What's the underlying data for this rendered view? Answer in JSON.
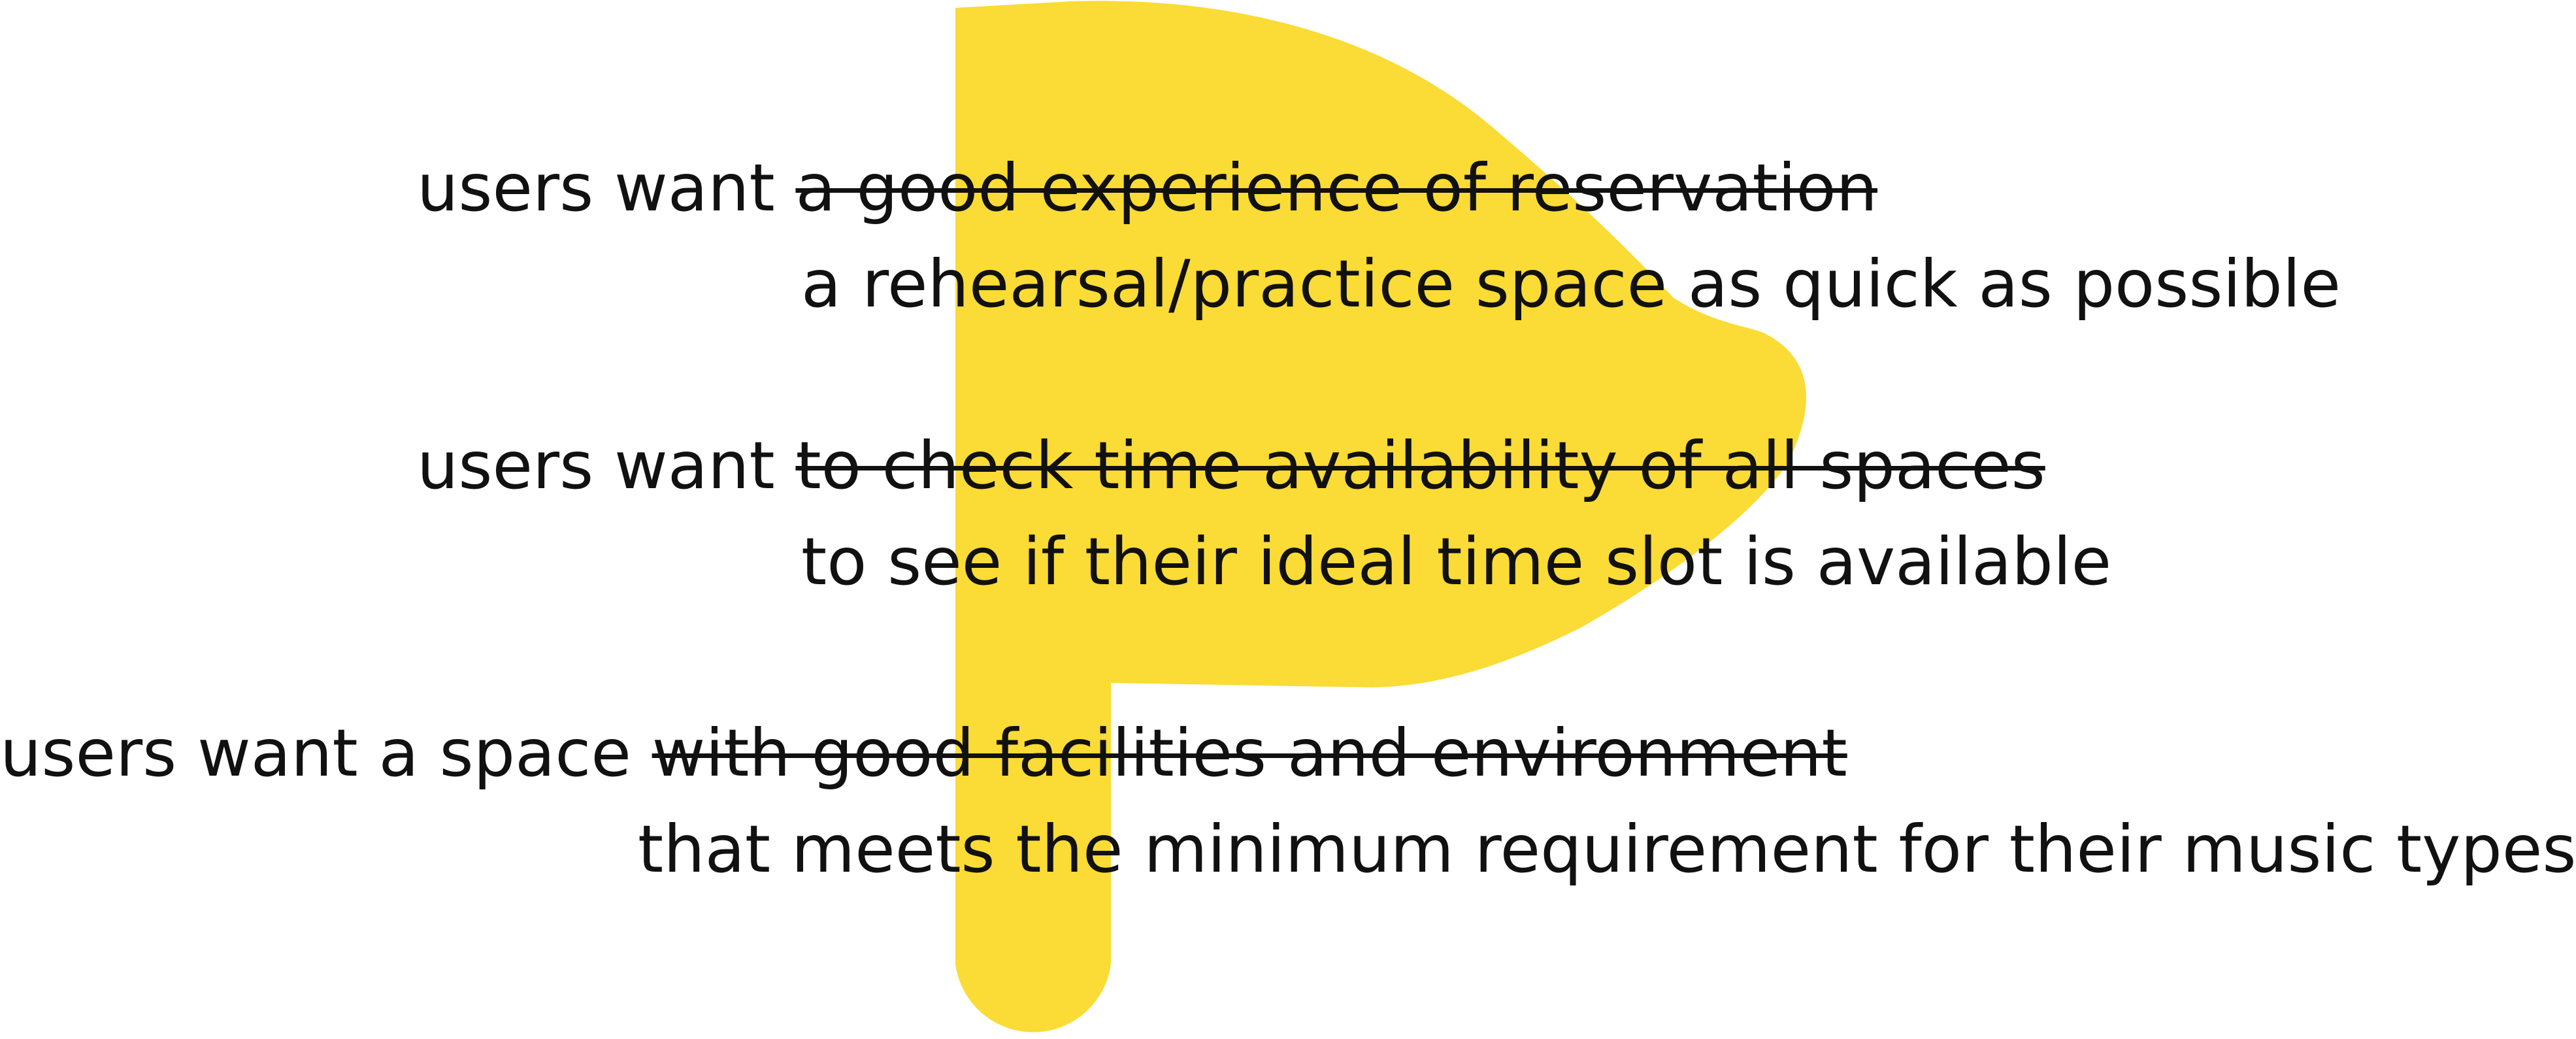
{
  "colors": {
    "background": "#ffffff",
    "accent_shape": "#FBDB35",
    "text": "#111111"
  },
  "statements": [
    {
      "prefix": "users want ",
      "struck": "a good experience of reservation",
      "replacement": "a rehearsal/practice space as quick as possible"
    },
    {
      "prefix": "users want ",
      "struck": "to check time availability of all spaces",
      "replacement": "to see if their ideal time slot is available"
    },
    {
      "prefix": "users want a space ",
      "struck": "with good facilities and environment",
      "replacement": "that meets the minimum requirement for their music types"
    }
  ]
}
